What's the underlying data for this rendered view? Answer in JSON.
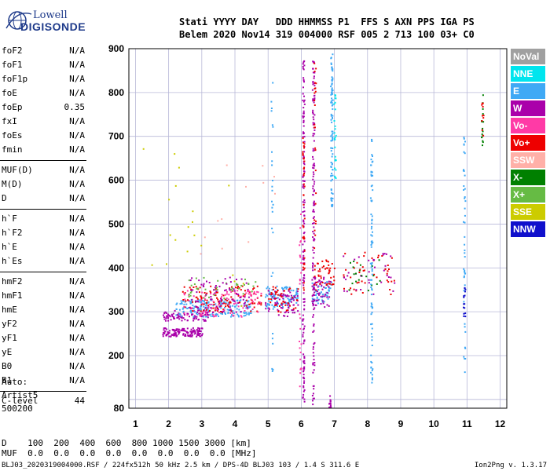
{
  "brand": {
    "line1": "Lowell",
    "line2": "DIGISONDE"
  },
  "header": {
    "line1": "Stati YYYY DAY   DDD HHMMSS P1  FFS S AXN PPS IGA PS",
    "line2": "Belem 2020 Nov14 319 004000 RSF 005 2 713 100 03+ C0"
  },
  "params_a": [
    {
      "label": "foF2",
      "value": "N/A"
    },
    {
      "label": "foF1",
      "value": "N/A"
    },
    {
      "label": "foF1p",
      "value": "N/A"
    },
    {
      "label": "foE",
      "value": "N/A"
    },
    {
      "label": "foEp",
      "value": "0.35"
    },
    {
      "label": "fxI",
      "value": "N/A"
    },
    {
      "label": "foEs",
      "value": "N/A"
    },
    {
      "label": "fmin",
      "value": "N/A"
    }
  ],
  "params_b": [
    {
      "label": "MUF(D)",
      "value": "N/A"
    },
    {
      "label": "M(D)",
      "value": "N/A"
    },
    {
      "label": "D",
      "value": "N/A"
    }
  ],
  "params_c": [
    {
      "label": "h`F",
      "value": "N/A"
    },
    {
      "label": "h`F2",
      "value": "N/A"
    },
    {
      "label": "h`E",
      "value": "N/A"
    },
    {
      "label": "h`Es",
      "value": "N/A"
    }
  ],
  "params_d": [
    {
      "label": "hmF2",
      "value": "N/A"
    },
    {
      "label": "hmF1",
      "value": "N/A"
    },
    {
      "label": "hmE",
      "value": "N/A"
    },
    {
      "label": "yF2",
      "value": "N/A"
    },
    {
      "label": "yF1",
      "value": "N/A"
    },
    {
      "label": "yE",
      "value": "N/A"
    },
    {
      "label": "B0",
      "value": "N/A"
    },
    {
      "label": "B1",
      "value": "N/A"
    }
  ],
  "params_e": [
    {
      "label": "C-level",
      "value": "44"
    }
  ],
  "auto": {
    "line1": "Auto:",
    "line2": "Artist5",
    "line3": "500200"
  },
  "legend": [
    {
      "label": "NoVal",
      "color": "#a0a0a0"
    },
    {
      "label": "NNE",
      "color": "#00e5ee"
    },
    {
      "label": "E",
      "color": "#3fa9f5"
    },
    {
      "label": "W",
      "color": "#aa00aa"
    },
    {
      "label": "Vo-",
      "color": "#ff3aa6"
    },
    {
      "label": "Vo+",
      "color": "#ee0000"
    },
    {
      "label": "SSW",
      "color": "#ffb0a8"
    },
    {
      "label": "X-",
      "color": "#008000"
    },
    {
      "label": "X+",
      "color": "#66bb44"
    },
    {
      "label": "SSE",
      "color": "#cccc00"
    },
    {
      "label": "NNW",
      "color": "#1010cc"
    }
  ],
  "bottom": {
    "line1": "D    100  200  400  600  800 1000 1500 3000 [km]",
    "line2": "MUF  0.0  0.0  0.0  0.0  0.0  0.0  0.0  0.0 [MHz]"
  },
  "footer": "BLJ03_2020319004000.RSF / 224fx512h 50 kHz 2.5 km / DPS-4D BLJ03 103 / 1.4 S 311.6 E",
  "version": "Ion2Png v. 1.3.17",
  "chart_data": {
    "type": "scatter",
    "xlim": [
      0.8,
      12.2
    ],
    "ylim": [
      80,
      900
    ],
    "xticks": [
      1,
      2,
      3,
      4,
      5,
      6,
      7,
      8,
      9,
      10,
      11,
      12
    ],
    "yticks": [
      80,
      200,
      300,
      400,
      500,
      600,
      700,
      800,
      900
    ],
    "grid": true,
    "grid_x": [
      1,
      2,
      3,
      4,
      5,
      6,
      7,
      8,
      9,
      10,
      11,
      12
    ],
    "grid_y": [
      100,
      200,
      300,
      400,
      500,
      600,
      700,
      800,
      900
    ],
    "legend_position": "right",
    "clusters": [
      {
        "x": [
          1.8,
          3.0
        ],
        "y": [
          245,
          265
        ],
        "color": "#aa00aa",
        "n": 140
      },
      {
        "x": [
          1.8,
          3.2
        ],
        "y": [
          280,
          305
        ],
        "color": "#aa00aa",
        "n": 90
      },
      {
        "x": [
          2.2,
          4.5
        ],
        "y": [
          290,
          330
        ],
        "color": "#3fa9f5",
        "n": 180
      },
      {
        "x": [
          2.4,
          4.8
        ],
        "y": [
          300,
          360
        ],
        "color": "#ee0000",
        "n": 120
      },
      {
        "x": [
          2.4,
          4.8
        ],
        "y": [
          290,
          350
        ],
        "color": "#ff3aa6",
        "n": 100
      },
      {
        "x": [
          2.5,
          4.6
        ],
        "y": [
          330,
          380
        ],
        "color": "#66bb44",
        "n": 40
      },
      {
        "x": [
          2.6,
          4.4
        ],
        "y": [
          300,
          380
        ],
        "color": "#aa00aa",
        "n": 80
      },
      {
        "x": [
          4.9,
          5.9
        ],
        "y": [
          310,
          360
        ],
        "color": "#3fa9f5",
        "n": 90
      },
      {
        "x": [
          4.9,
          5.9
        ],
        "y": [
          290,
          350
        ],
        "color": "#aa00aa",
        "n": 70
      },
      {
        "x": [
          5.0,
          5.9
        ],
        "y": [
          300,
          360
        ],
        "color": "#ee0000",
        "n": 40
      },
      {
        "x": [
          6.3,
          6.9
        ],
        "y": [
          320,
          370
        ],
        "color": "#3fa9f5",
        "n": 50
      },
      {
        "x": [
          6.3,
          6.9
        ],
        "y": [
          310,
          380
        ],
        "color": "#aa00aa",
        "n": 50
      },
      {
        "x": [
          6.4,
          7.0
        ],
        "y": [
          360,
          420
        ],
        "color": "#ee0000",
        "n": 40
      },
      {
        "x": [
          7.2,
          8.8
        ],
        "y": [
          340,
          440
        ],
        "color": "#ee0000",
        "n": 45
      },
      {
        "x": [
          7.2,
          8.8
        ],
        "y": [
          340,
          440
        ],
        "color": "#aa00aa",
        "n": 35
      },
      {
        "x": [
          7.3,
          8.4
        ],
        "y": [
          350,
          420
        ],
        "color": "#008000",
        "n": 20
      },
      {
        "x": [
          1.2,
          4.5
        ],
        "y": [
          280,
          680
        ],
        "color": "#cccc00",
        "n": 20
      },
      {
        "x": [
          2.8,
          5.2
        ],
        "y": [
          380,
          700
        ],
        "color": "#ffb0a8",
        "n": 12
      }
    ],
    "columns": [
      {
        "x": 6.05,
        "y": [
          90,
          880
        ],
        "color": "#aa00aa",
        "n": 160
      },
      {
        "x": 6.05,
        "y": [
          350,
          700
        ],
        "color": "#ee0000",
        "n": 40
      },
      {
        "x": 6.35,
        "y": [
          90,
          890
        ],
        "color": "#aa00aa",
        "n": 140
      },
      {
        "x": 6.4,
        "y": [
          320,
          880
        ],
        "color": "#ee0000",
        "n": 30
      },
      {
        "x": 5.95,
        "y": [
          120,
          540
        ],
        "color": "#ff3aa6",
        "n": 25
      },
      {
        "x": 6.9,
        "y": [
          540,
          890
        ],
        "color": "#3fa9f5",
        "n": 90
      },
      {
        "x": 7.0,
        "y": [
          600,
          800
        ],
        "color": "#00e5ee",
        "n": 25
      },
      {
        "x": 8.1,
        "y": [
          140,
          700
        ],
        "color": "#3fa9f5",
        "n": 80
      },
      {
        "x": 5.1,
        "y": [
          150,
          830
        ],
        "color": "#3fa9f5",
        "n": 28
      },
      {
        "x": 10.9,
        "y": [
          160,
          700
        ],
        "color": "#3fa9f5",
        "n": 45
      },
      {
        "x": 10.9,
        "y": [
          290,
          360
        ],
        "color": "#1010cc",
        "n": 15
      },
      {
        "x": 11.45,
        "y": [
          680,
          810
        ],
        "color": "#008000",
        "n": 16
      },
      {
        "x": 11.45,
        "y": [
          690,
          800
        ],
        "color": "#ee0000",
        "n": 10
      },
      {
        "x": 6.85,
        "y": [
          80,
          110
        ],
        "color": "#aa00aa",
        "n": 14
      }
    ]
  }
}
